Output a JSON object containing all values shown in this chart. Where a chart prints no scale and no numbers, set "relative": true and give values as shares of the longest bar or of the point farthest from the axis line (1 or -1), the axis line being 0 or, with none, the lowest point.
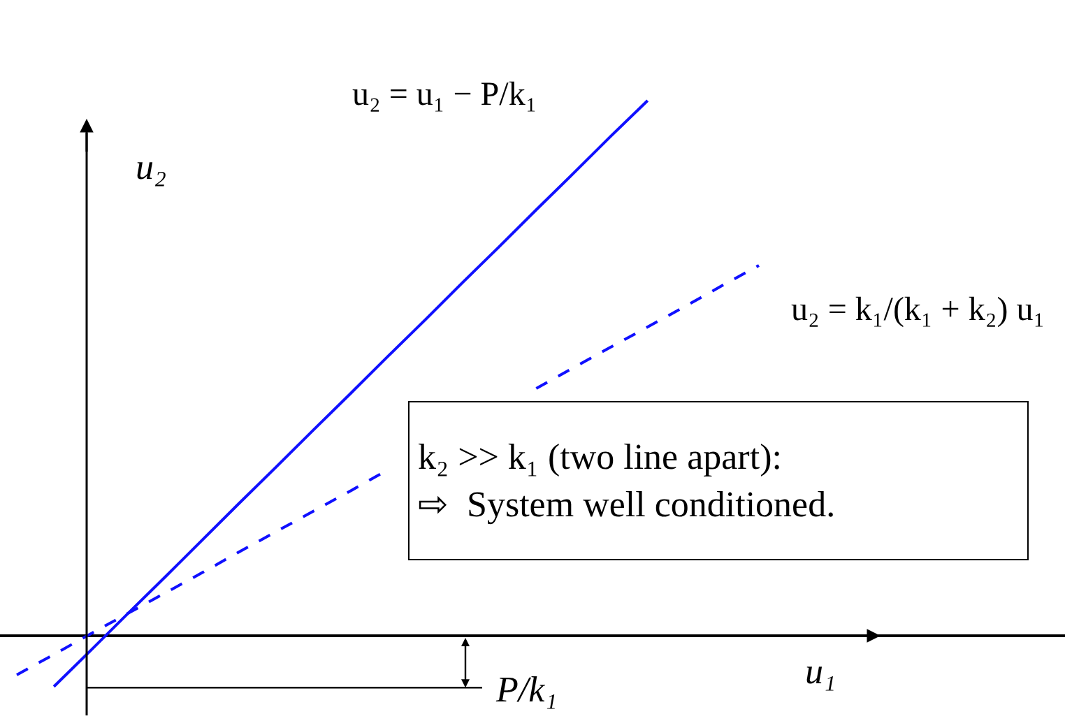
{
  "chart_data": {
    "type": "line",
    "relative": true,
    "xlabel": "u₁",
    "ylabel": "u₂",
    "categories": [
      null,
      null,
      null,
      null,
      null,
      null,
      null,
      null,
      null,
      null,
      null,
      null,
      null,
      null,
      null,
      null,
      null,
      null,
      null,
      null,
      null
    ],
    "series": [
      {
        "color": "#1010ff",
        "line_style": "solid",
        "values": [
          null,
          -0.095,
          -0.027,
          0.042,
          0.11,
          0.179,
          0.248,
          0.316,
          0.385,
          0.453,
          0.522,
          0.59,
          0.659,
          0.727,
          0.796,
          0.864,
          0.933,
          1.0,
          null,
          null,
          null
        ]
      },
      {
        "color": "#1010ff",
        "line_style": "dashed",
        "values": [
          -0.073,
          -0.035,
          0.004,
          0.042,
          0.08,
          0.118,
          0.157,
          0.195,
          0.233,
          0.271,
          0.31,
          null,
          null,
          null,
          0.462,
          0.501,
          0.539,
          0.577,
          0.615,
          0.654,
          0.692
        ]
      }
    ],
    "ref_lines": [
      {
        "axis": "y",
        "value": -0.097,
        "label": "P/k₁",
        "color": "#000000"
      }
    ],
    "annotations": [
      "u₂ = u₁ − P/k₁",
      "u₂ = k₁/(k₁ + k₂) u₁",
      "k₂ >> k₁ (two line apart):\n⇨  System well conditioned."
    ],
    "marker": "none"
  }
}
